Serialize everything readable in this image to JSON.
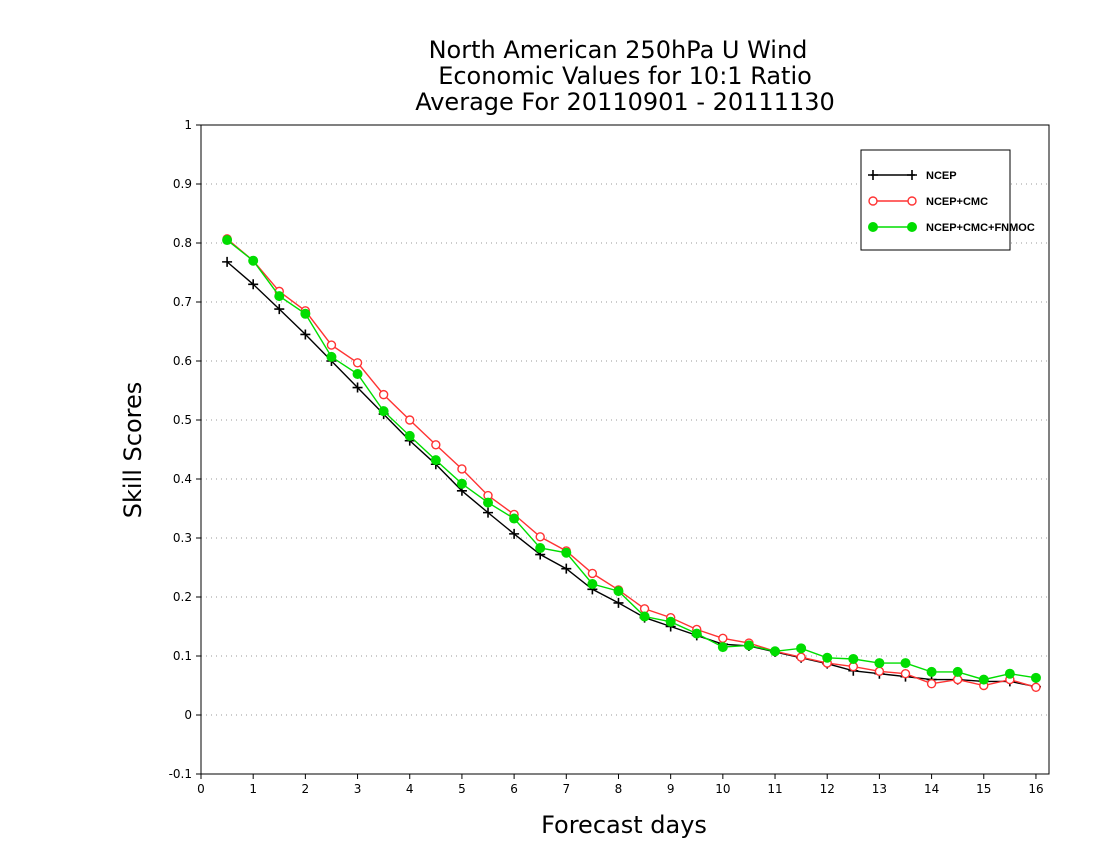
{
  "chart_data": {
    "type": "line",
    "title_lines": [
      "North American 250hPa U Wind",
      "Economic Values for 10:1 Ratio",
      "Average For 20110901 - 20111130"
    ],
    "xlabel": "Forecast days",
    "ylabel": "Skill Scores",
    "xlim": [
      0,
      16.25
    ],
    "ylim": [
      -0.1,
      1
    ],
    "x_ticks": [
      0,
      1,
      2,
      3,
      4,
      5,
      6,
      7,
      8,
      9,
      10,
      11,
      12,
      13,
      14,
      15,
      16
    ],
    "y_ticks": [
      -0.1,
      0,
      0.1,
      0.2,
      0.3,
      0.4,
      0.5,
      0.6,
      0.7,
      0.8,
      0.9,
      1
    ],
    "y_tick_labels": [
      "-0.1",
      "0",
      "0.1",
      "0.2",
      "0.3",
      "0.4",
      "0.5",
      "0.6",
      "0.7",
      "0.8",
      "0.9",
      "1"
    ],
    "grid": "horizontal dotted",
    "legend_position": "top-right",
    "x": [
      0.5,
      1,
      1.5,
      2,
      2.5,
      3,
      3.5,
      4,
      4.5,
      5,
      5.5,
      6,
      6.5,
      7,
      7.5,
      8,
      8.5,
      9,
      9.5,
      10,
      10.5,
      11,
      11.5,
      12,
      12.5,
      13,
      13.5,
      14,
      14.5,
      15,
      15.5,
      16
    ],
    "series": [
      {
        "name": "NCEP",
        "color": "#000000",
        "marker": "plus",
        "values": [
          0.768,
          0.73,
          0.688,
          0.645,
          0.6,
          0.555,
          0.51,
          0.465,
          0.425,
          0.38,
          0.343,
          0.307,
          0.272,
          0.248,
          0.213,
          0.19,
          0.165,
          0.15,
          0.135,
          0.12,
          0.117,
          0.107,
          0.097,
          0.087,
          0.075,
          0.07,
          0.065,
          0.06,
          0.06,
          0.057,
          0.057,
          0.048
        ]
      },
      {
        "name": "NCEP+CMC",
        "color": "#ff3333",
        "marker": "open-circle",
        "values": [
          0.807,
          0.77,
          0.718,
          0.685,
          0.627,
          0.597,
          0.543,
          0.5,
          0.458,
          0.417,
          0.372,
          0.34,
          0.302,
          0.278,
          0.24,
          0.212,
          0.18,
          0.165,
          0.145,
          0.13,
          0.122,
          0.108,
          0.098,
          0.088,
          0.082,
          0.074,
          0.07,
          0.053,
          0.06,
          0.05,
          0.06,
          0.047
        ]
      },
      {
        "name": "NCEP+CMC+FNMOC",
        "color": "#00dd00",
        "marker": "filled-circle",
        "values": [
          0.805,
          0.77,
          0.71,
          0.68,
          0.607,
          0.578,
          0.515,
          0.473,
          0.432,
          0.392,
          0.36,
          0.333,
          0.283,
          0.275,
          0.222,
          0.21,
          0.167,
          0.158,
          0.138,
          0.115,
          0.118,
          0.108,
          0.113,
          0.097,
          0.095,
          0.088,
          0.088,
          0.073,
          0.073,
          0.06,
          0.07,
          0.063
        ]
      }
    ]
  }
}
